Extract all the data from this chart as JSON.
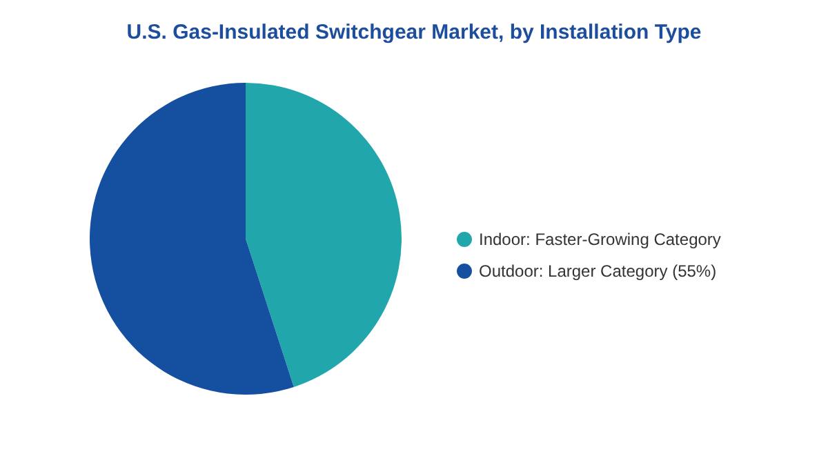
{
  "chart_data": {
    "type": "pie",
    "title": "U.S. Gas-Insulated Switchgear Market, by Installation Type",
    "categories": [
      "Indoor:  Faster-Growing Category",
      "Outdoor:  Larger Category (55%)"
    ],
    "values": [
      45,
      55
    ],
    "colors": [
      "#20a6ab",
      "#1550a0"
    ],
    "legend": "right"
  }
}
